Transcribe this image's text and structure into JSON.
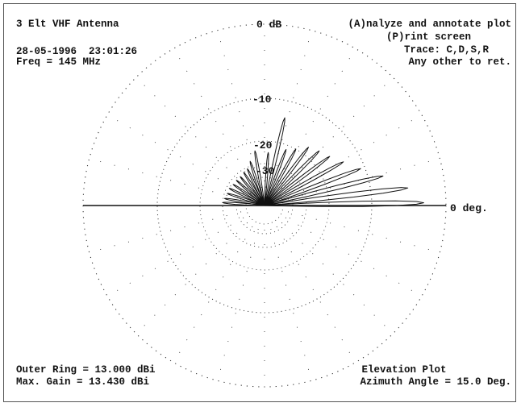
{
  "header": {
    "title": "3 Elt VHF Antenna",
    "datetime": "28-05-1996  23:01:26",
    "freq": "Freq = 145 MHz"
  },
  "menu": {
    "analyze": "(A)nalyze and annotate plot",
    "print": "(P)rint screen",
    "trace": "Trace: C,D,S,R",
    "return": "Any other to ret."
  },
  "footer": {
    "outer_ring": "Outer Ring = 13.000 dBi",
    "max_gain": "Max. Gain = 13.430 dBi",
    "plot_type": "Elevation Plot",
    "azimuth": "Azimuth Angle = 15.0 Deg."
  },
  "polar": {
    "top_label": "0 dB",
    "ring_labels": [
      "-10",
      "-20",
      "-30"
    ],
    "zero_deg_label": "0 deg.",
    "ring_db": [
      0,
      -10,
      -20,
      -30,
      -40,
      -50
    ],
    "colors": {
      "ink": "#111111",
      "grid": "#333333"
    }
  },
  "chart_data": {
    "type": "polar",
    "title": "Elevation Plot",
    "radial_reference_dbi": 13.0,
    "radial_ticks_db": [
      0,
      -10,
      -20,
      -30
    ],
    "angle_label": "0 deg.",
    "lobes": [
      {
        "angle_deg": 1,
        "db": -3
      },
      {
        "angle_deg": 7,
        "db": -5
      },
      {
        "angle_deg": 14,
        "db": -8
      },
      {
        "angle_deg": 21,
        "db": -11
      },
      {
        "angle_deg": 29,
        "db": -14
      },
      {
        "angle_deg": 37,
        "db": -16
      },
      {
        "angle_deg": 45,
        "db": -17
      },
      {
        "angle_deg": 53,
        "db": -18
      },
      {
        "angle_deg": 61,
        "db": -20
      },
      {
        "angle_deg": 69,
        "db": -22
      },
      {
        "angle_deg": 77,
        "db": -14
      },
      {
        "angle_deg": 86,
        "db": -25
      },
      {
        "angle_deg": 100,
        "db": -24
      },
      {
        "angle_deg": 108,
        "db": -28
      },
      {
        "angle_deg": 115,
        "db": -31
      },
      {
        "angle_deg": 122,
        "db": -32
      },
      {
        "angle_deg": 130,
        "db": -33
      },
      {
        "angle_deg": 138,
        "db": -33
      },
      {
        "angle_deg": 146,
        "db": -33
      },
      {
        "angle_deg": 154,
        "db": -32
      },
      {
        "angle_deg": 162,
        "db": -32
      },
      {
        "angle_deg": 170,
        "db": -31
      },
      {
        "angle_deg": 176,
        "db": -30
      }
    ]
  }
}
